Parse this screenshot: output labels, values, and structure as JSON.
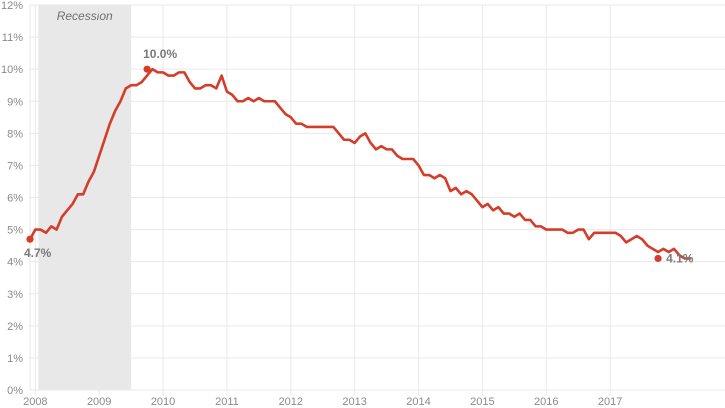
{
  "chart_data": {
    "type": "line",
    "title": "",
    "xlabel": "",
    "ylabel": "",
    "x_start": "2007-12",
    "y_unit": "%",
    "ylim": [
      0,
      12
    ],
    "y_ticks": [
      0,
      1,
      2,
      3,
      4,
      5,
      6,
      7,
      8,
      9,
      10,
      11,
      12
    ],
    "y_tick_labels": [
      "0%",
      "1%",
      "2%",
      "3%",
      "4%",
      "5%",
      "6%",
      "7%",
      "8%",
      "9%",
      "10%",
      "11%",
      "12%"
    ],
    "x_ticks": [
      {
        "label": "2008",
        "date": "2008-01"
      },
      {
        "label": "2009",
        "date": "2009-01"
      },
      {
        "label": "2010",
        "date": "2010-01"
      },
      {
        "label": "2011",
        "date": "2011-01"
      },
      {
        "label": "2012",
        "date": "2012-01"
      },
      {
        "label": "2013",
        "date": "2013-01"
      },
      {
        "label": "2014",
        "date": "2014-01"
      },
      {
        "label": "2015",
        "date": "2015-01"
      },
      {
        "label": "2016",
        "date": "2016-01"
      },
      {
        "label": "2017",
        "date": "2017-01"
      }
    ],
    "grid": true,
    "recession": {
      "label": "Recession",
      "start": "2008-01",
      "end": "2009-07",
      "color": "#e8e8e8"
    },
    "series": [
      {
        "color": "#d43d2a",
        "values": [
          4.7,
          5.0,
          5.0,
          4.9,
          5.1,
          5.0,
          5.4,
          5.6,
          5.8,
          6.1,
          6.1,
          6.5,
          6.8,
          7.3,
          7.8,
          8.3,
          8.7,
          9.0,
          9.4,
          9.5,
          9.5,
          9.6,
          9.8,
          10.0,
          9.9,
          9.9,
          9.8,
          9.8,
          9.9,
          9.9,
          9.6,
          9.4,
          9.4,
          9.5,
          9.5,
          9.4,
          9.8,
          9.3,
          9.2,
          9.0,
          9.0,
          9.1,
          9.0,
          9.1,
          9.0,
          9.0,
          9.0,
          8.8,
          8.6,
          8.5,
          8.3,
          8.3,
          8.2,
          8.2,
          8.2,
          8.2,
          8.2,
          8.2,
          8.0,
          7.8,
          7.8,
          7.7,
          7.9,
          8.0,
          7.7,
          7.5,
          7.6,
          7.5,
          7.5,
          7.3,
          7.2,
          7.2,
          7.2,
          7.0,
          6.7,
          6.7,
          6.6,
          6.7,
          6.6,
          6.2,
          6.3,
          6.1,
          6.2,
          6.1,
          5.9,
          5.7,
          5.8,
          5.6,
          5.7,
          5.5,
          5.5,
          5.4,
          5.5,
          5.3,
          5.3,
          5.1,
          5.1,
          5.0,
          5.0,
          5.0,
          5.0,
          4.9,
          4.9,
          5.0,
          5.0,
          4.7,
          4.9,
          4.9,
          4.9,
          4.9,
          4.9,
          4.8,
          4.6,
          4.7,
          4.8,
          4.7,
          4.5,
          4.4,
          4.3,
          4.4,
          4.3,
          4.4,
          4.2,
          4.1,
          4.1
        ]
      }
    ],
    "annotations": [
      {
        "label": "4.7%",
        "date": "2007-12",
        "value": 4.7
      },
      {
        "label": "10.0%",
        "date": "2009-10",
        "value": 10.0
      },
      {
        "label": "4.1%",
        "date": "2017-10",
        "value": 4.1
      }
    ]
  }
}
